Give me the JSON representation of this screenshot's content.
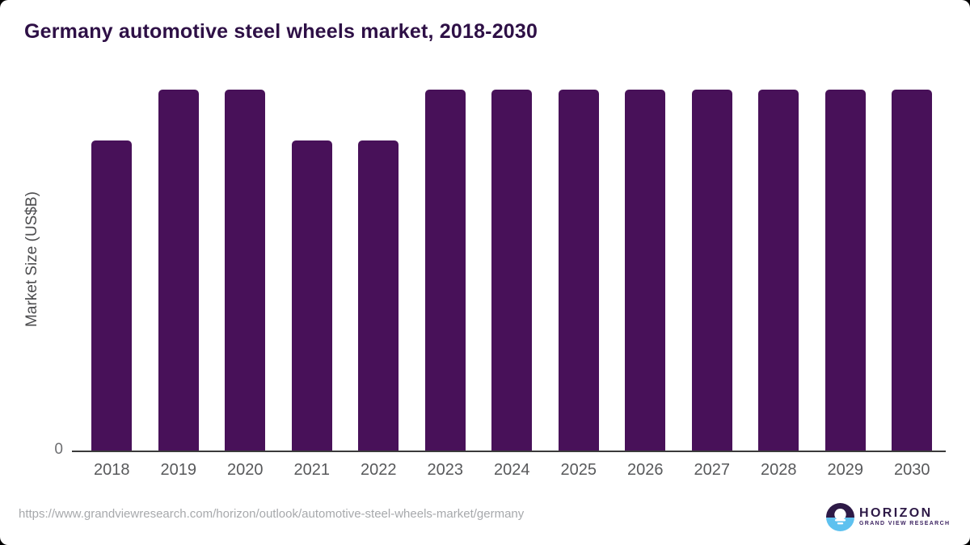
{
  "title": "Germany automotive steel wheels market, 2018-2030",
  "chart_data": {
    "type": "bar",
    "title": "Germany automotive steel wheels market, 2018-2030",
    "categories": [
      "2018",
      "2019",
      "2020",
      "2021",
      "2022",
      "2023",
      "2024",
      "2025",
      "2026",
      "2027",
      "2028",
      "2029",
      "2030"
    ],
    "values": [
      0.86,
      1.0,
      1.0,
      0.86,
      0.86,
      1.0,
      1.0,
      1.0,
      1.0,
      1.0,
      1.0,
      1.0,
      1.0
    ],
    "value_note": "y-axis shows only a 0 tick; values are relative bar heights normalized to the tallest bar = 1",
    "xlabel": "",
    "ylabel": "Market Size (US$B)",
    "ytick_labels": [
      "0"
    ],
    "ylim": [
      0,
      1
    ],
    "grid": false,
    "legend": false,
    "bar_color": "#481159"
  },
  "colors": {
    "bar": "#481159",
    "title_text": "#2e1046",
    "axis_line": "#3b3b3b",
    "tick_label": "#58595b",
    "url_text": "#a7a9ac",
    "logo_purple": "#2e1a47",
    "logo_blue": "#5ec1ef",
    "card_background": "#ffffff",
    "corner_background": "#000000"
  },
  "footer": {
    "source_url": "https://www.grandviewresearch.com/horizon/outlook/automotive-steel-wheels-market/germany",
    "logo": {
      "brand": "HORIZON",
      "tagline": "GRAND VIEW RESEARCH"
    }
  }
}
